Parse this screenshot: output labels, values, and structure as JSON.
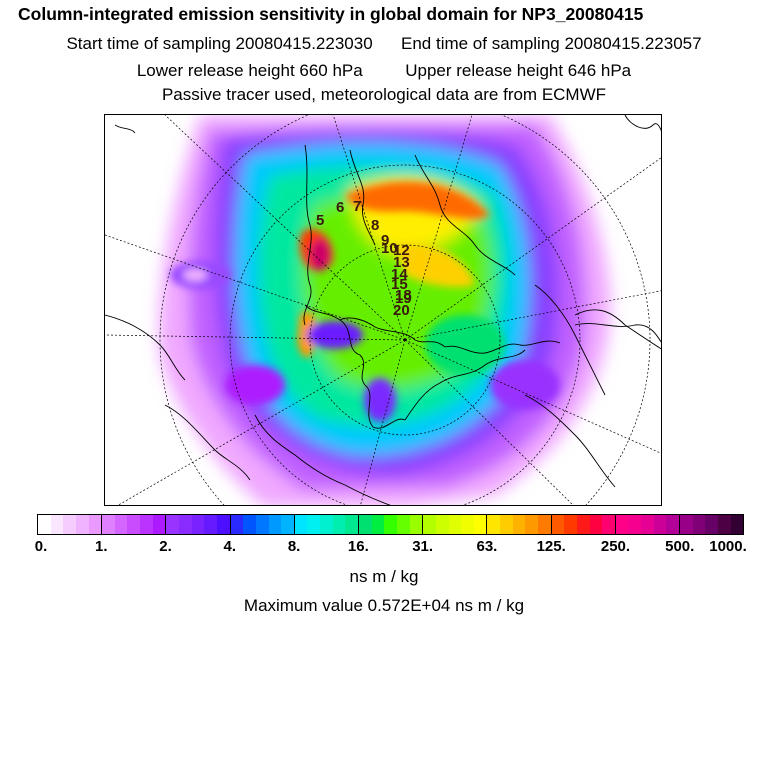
{
  "header": {
    "title": "Column-integrated emission sensitivity in global domain for NP3_20080415",
    "start_label": "Start time of sampling 20080415.223030",
    "end_label": "End time of sampling 20080415.223057",
    "lower_label": "Lower release height  660 hPa",
    "upper_label": "Upper release height  646 hPa",
    "tracer_line": "Passive tracer used, meteorological data are from ECMWF"
  },
  "map": {
    "release_labels": [
      "5",
      "6",
      "7",
      "8",
      "9",
      "10",
      "12",
      "13",
      "14",
      "15",
      "18",
      "19",
      "20"
    ]
  },
  "colorbar": {
    "tick_labels": [
      "0.",
      "1.",
      "2.",
      "4.",
      "8.",
      "16.",
      "31.",
      "63.",
      "125.",
      "250.",
      "500.",
      "1000."
    ],
    "colors": [
      "#ffffff",
      "#fbe6ff",
      "#f6ccff",
      "#f0b3ff",
      "#ea99ff",
      "#df80ff",
      "#d466ff",
      "#c94dff",
      "#bb33ff",
      "#ad1aff",
      "#9933ff",
      "#8a2bff",
      "#7a22ff",
      "#661aff",
      "#4d0fff",
      "#2a2aff",
      "#0055ff",
      "#0077ff",
      "#0099ff",
      "#00b3ff",
      "#00e5ff",
      "#00f0f0",
      "#00f0d0",
      "#00eeb0",
      "#00e890",
      "#00e070",
      "#00ee40",
      "#33ff00",
      "#66ff00",
      "#99ff00",
      "#b3ff00",
      "#ccff00",
      "#e0ff00",
      "#f0ff00",
      "#ffff00",
      "#ffe600",
      "#ffcc00",
      "#ffb300",
      "#ff9900",
      "#ff7a00",
      "#ff5a00",
      "#ff3a00",
      "#ff1a1a",
      "#ff0040",
      "#ff0070",
      "#ff0088",
      "#f5008f",
      "#e60094",
      "#cc0099",
      "#b30099",
      "#990088",
      "#800077",
      "#660066",
      "#4d0044",
      "#330033"
    ],
    "units": "ns m / kg"
  },
  "footer": {
    "max_value": "Maximum value  0.572E+04 ns m / kg"
  }
}
